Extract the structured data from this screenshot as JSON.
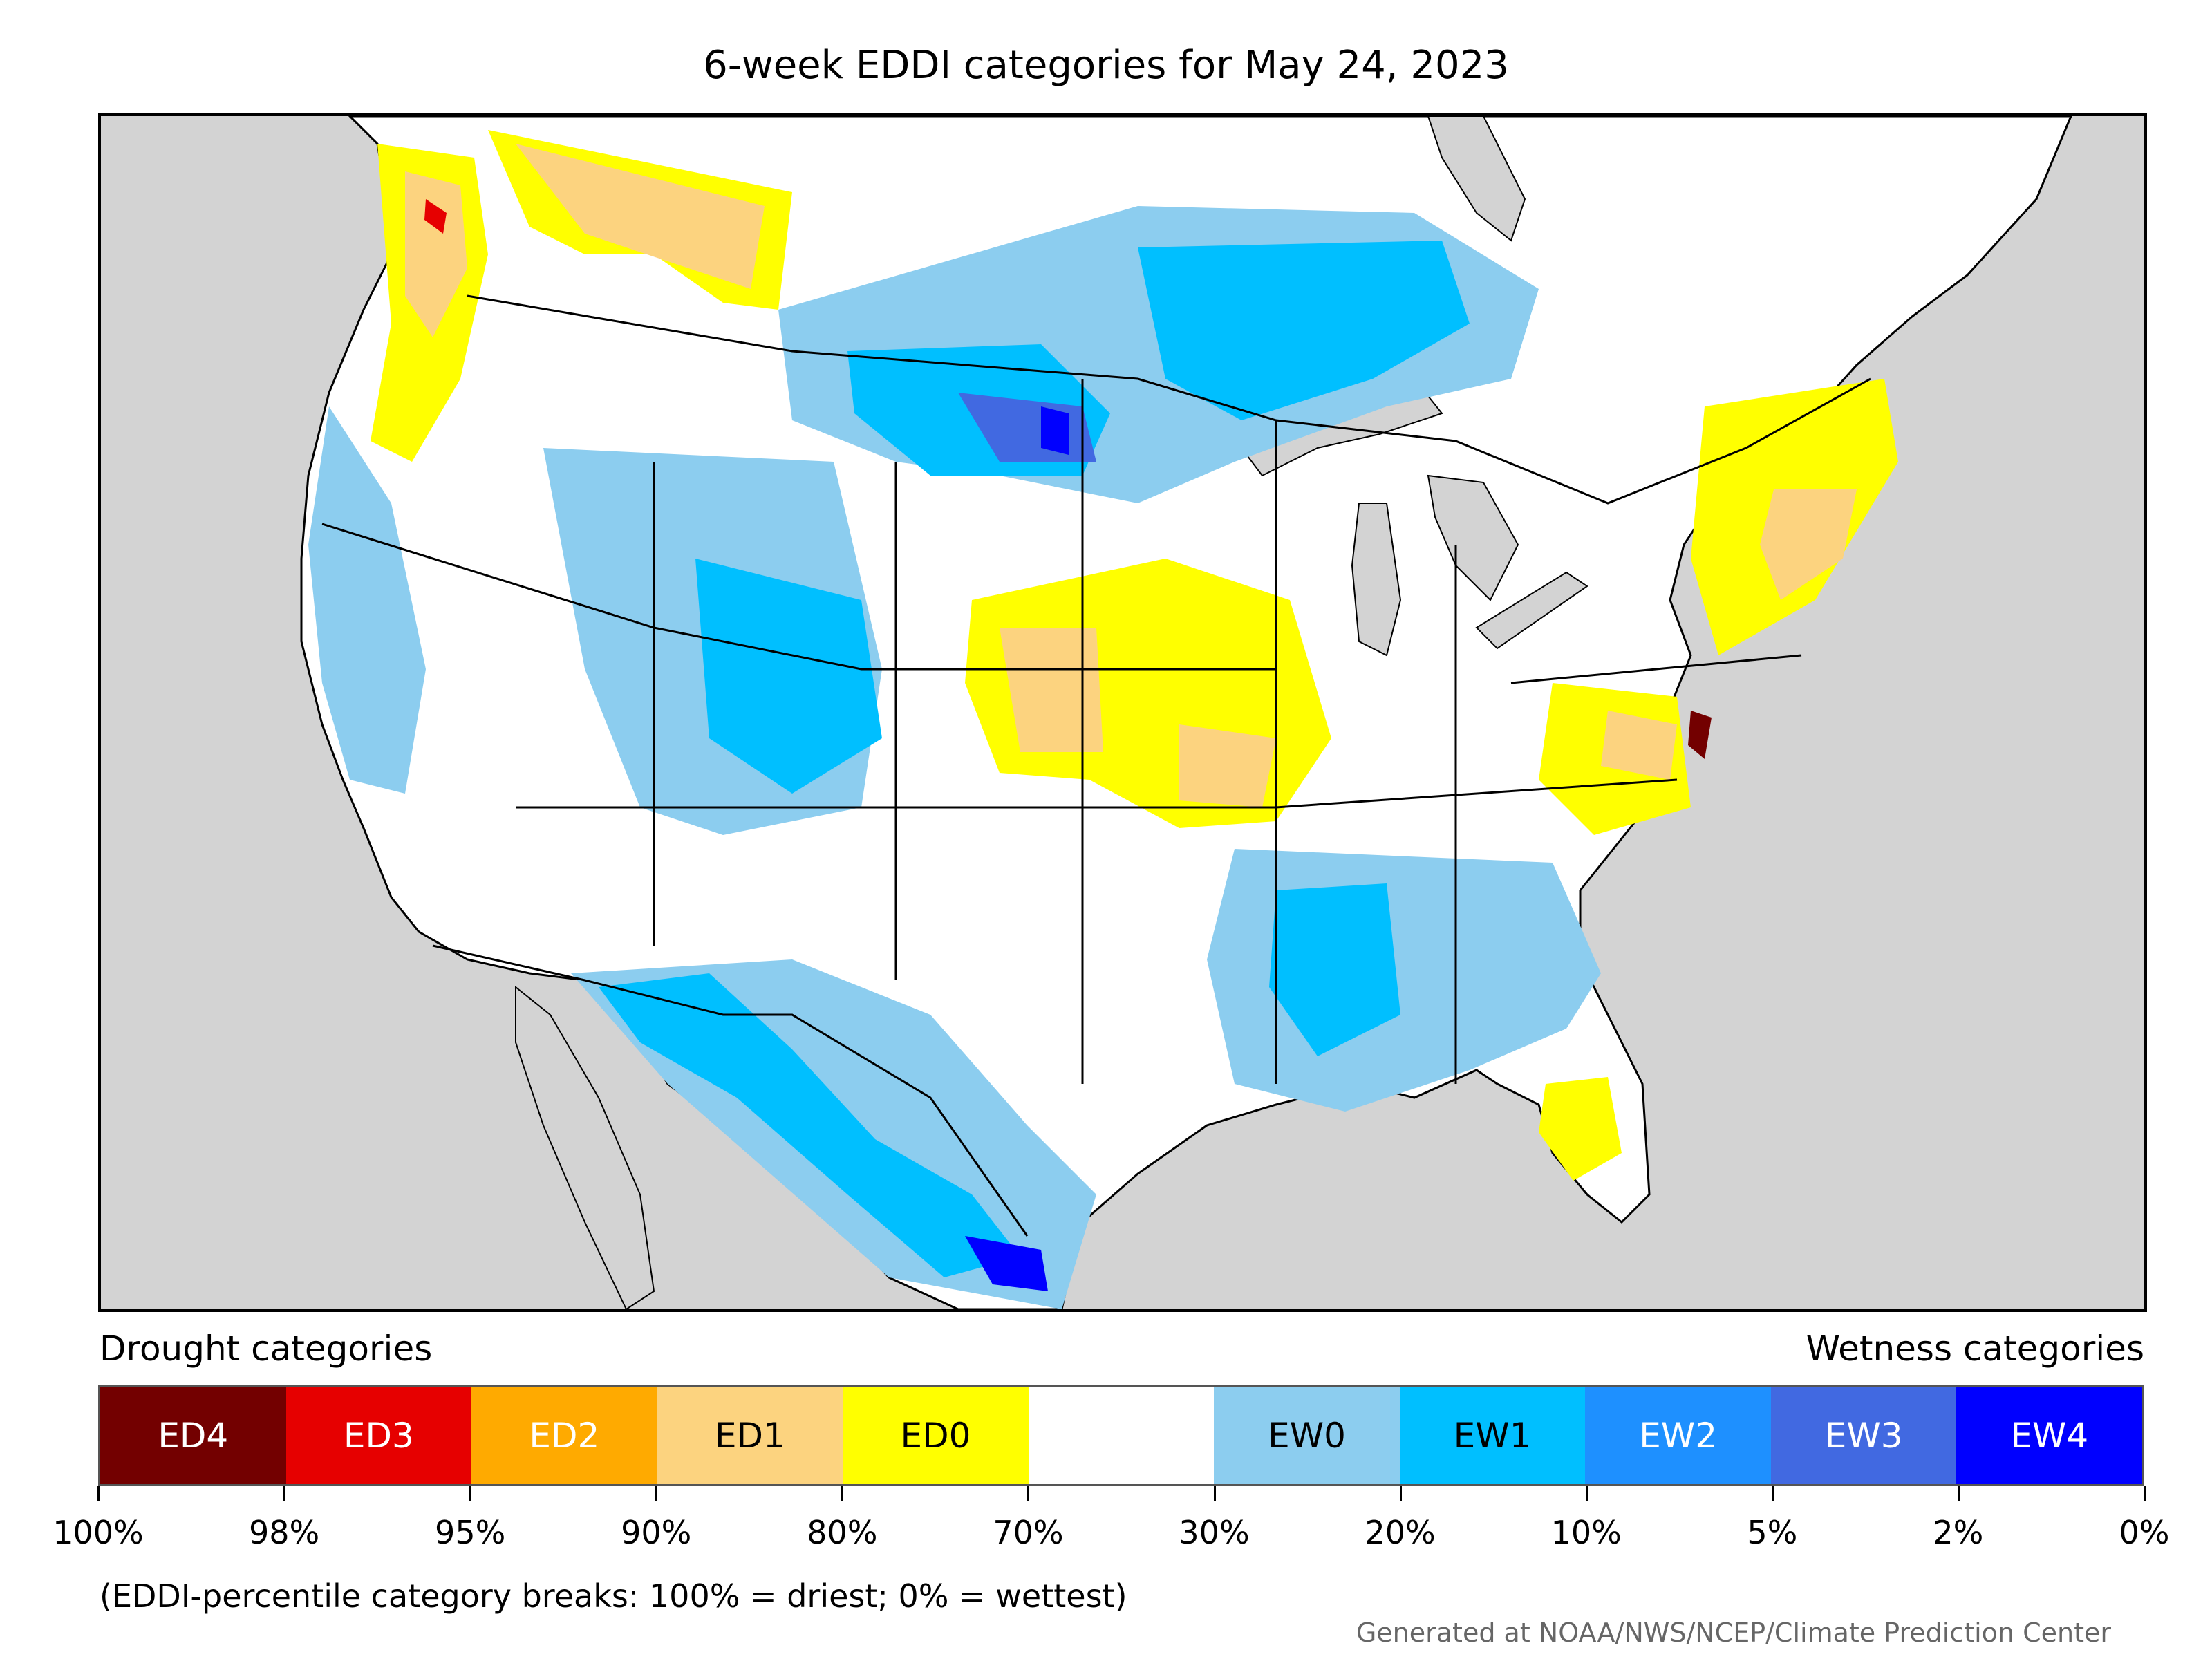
{
  "title": "6-week EDDI categories for May 24, 2023",
  "legend": {
    "left_label": "Drought categories",
    "right_label": "Wetness categories",
    "categories": [
      {
        "label": "ED4",
        "color": "#730000",
        "text_color": "#ffffff"
      },
      {
        "label": "ED3",
        "color": "#e60000",
        "text_color": "#ffffff"
      },
      {
        "label": "ED2",
        "color": "#ffaa00",
        "text_color": "#ffffff"
      },
      {
        "label": "ED1",
        "color": "#fcd37f",
        "text_color": "#000000"
      },
      {
        "label": "ED0",
        "color": "#ffff00",
        "text_color": "#000000"
      },
      {
        "label": "",
        "color": "#ffffff",
        "text_color": "#000000"
      },
      {
        "label": "EW0",
        "color": "#8ccdef",
        "text_color": "#000000"
      },
      {
        "label": "EW1",
        "color": "#00bfff",
        "text_color": "#000000"
      },
      {
        "label": "EW2",
        "color": "#1e90ff",
        "text_color": "#ffffff"
      },
      {
        "label": "EW3",
        "color": "#4169e1",
        "text_color": "#ffffff"
      },
      {
        "label": "EW4",
        "color": "#0000ff",
        "text_color": "#ffffff"
      }
    ],
    "ticks": [
      "100%",
      "98%",
      "95%",
      "90%",
      "80%",
      "70%",
      "30%",
      "20%",
      "10%",
      "5%",
      "2%",
      "0%"
    ]
  },
  "footnote": "(EDDI-percentile category breaks: 100% = driest; 0% = wettest)",
  "credit": "Generated at NOAA/NWS/NCEP/Climate Prediction Center",
  "map_colors": {
    "ocean": "#d3d3d3",
    "land": "#ffffff",
    "lakes": "#d3d3d3",
    "borders": "#000000"
  }
}
